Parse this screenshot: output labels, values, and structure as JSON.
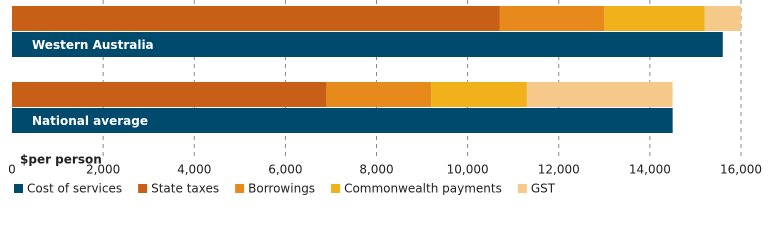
{
  "chart_data": {
    "type": "bar",
    "orientation": "horizontal",
    "x_label": "$per person",
    "categories": [
      "Western Australia",
      "National average"
    ],
    "series": [
      {
        "name": "Cost of services",
        "color": "#004a6e",
        "values": [
          15600,
          14500
        ]
      },
      {
        "name": "State taxes",
        "color": "#c85f16",
        "values": [
          10700,
          6900
        ]
      },
      {
        "name": "Borrowings",
        "color": "#e8891c",
        "values": [
          2300,
          2300
        ]
      },
      {
        "name": "Commonwealth payments",
        "color": "#f0b11a",
        "values": [
          2200,
          2100
        ]
      },
      {
        "name": "GST",
        "color": "#f5c98a",
        "values": [
          800,
          3200
        ]
      }
    ],
    "xlim": [
      0,
      16000
    ],
    "xticks": [
      0,
      {
        "value": 2000,
        "label": "2,000"
      },
      {
        "value": 4000,
        "label": "4,000"
      },
      {
        "value": 6000,
        "label": "6,000"
      },
      {
        "value": 8000,
        "label": "8,000"
      },
      {
        "value": 10000,
        "label": "10,000"
      },
      {
        "value": 12000,
        "label": "12,000"
      },
      {
        "value": 14000,
        "label": "14,000"
      },
      {
        "value": 16000,
        "label": "16,000"
      }
    ],
    "grid": true
  }
}
